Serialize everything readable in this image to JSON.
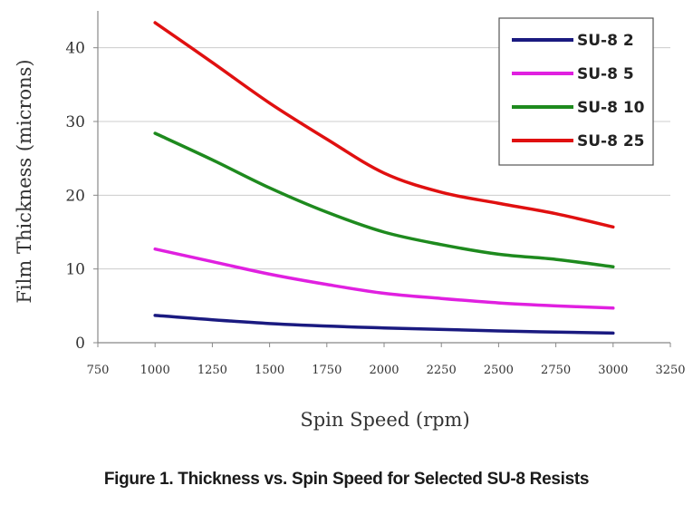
{
  "chart_data": {
    "type": "line",
    "title": "",
    "xlabel": "Spin Speed (rpm)",
    "ylabel": "Film Thickness (microns)",
    "xlim": [
      750,
      3250
    ],
    "ylim": [
      0,
      45
    ],
    "xticks": [
      "750",
      "1000",
      "1250",
      "1500",
      "1750",
      "2000",
      "2250",
      "2500",
      "2750",
      "3000",
      "3250"
    ],
    "yticks": [
      "0",
      "10",
      "20",
      "30",
      "40"
    ],
    "grid": "horizontal",
    "legend_position": "top-right",
    "series": [
      {
        "name": "SU-8 2",
        "color": "#1a1a80",
        "x": [
          1000,
          1500,
          2000,
          2500,
          3000
        ],
        "y": [
          3.7,
          2.6,
          2.0,
          1.6,
          1.3
        ]
      },
      {
        "name": "SU-8 5",
        "color": "#e020e0",
        "x": [
          1000,
          1250,
          1500,
          1750,
          2000,
          2250,
          2500,
          2750,
          3000
        ],
        "y": [
          12.7,
          11.0,
          9.3,
          7.9,
          6.7,
          6.0,
          5.4,
          5.0,
          4.7
        ]
      },
      {
        "name": "SU-8 10",
        "color": "#1e8a1e",
        "x": [
          1000,
          1250,
          1500,
          1750,
          2000,
          2250,
          2500,
          2750,
          3000
        ],
        "y": [
          28.4,
          24.8,
          21.0,
          17.7,
          15.0,
          13.3,
          12.0,
          11.3,
          10.3
        ]
      },
      {
        "name": "SU-8 25",
        "color": "#e01010",
        "x": [
          1000,
          1250,
          1500,
          1750,
          2000,
          2250,
          2500,
          2750,
          3000
        ],
        "y": [
          43.4,
          38.0,
          32.5,
          27.6,
          23.0,
          20.4,
          18.9,
          17.5,
          15.7
        ]
      }
    ]
  },
  "caption": "Figure 1. Thickness vs. Spin Speed for Selected SU-8 Resists"
}
